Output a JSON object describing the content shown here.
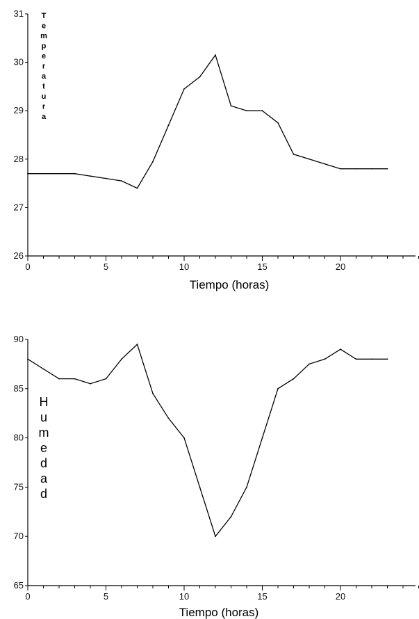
{
  "chart_data": [
    {
      "type": "line",
      "xlabel": "Tiempo (horas)",
      "ylabel": "Temperatura",
      "xlim": [
        0,
        25
      ],
      "ylim": [
        26,
        31
      ],
      "xticks": [
        0,
        5,
        10,
        15,
        20
      ],
      "xtick_labels": [
        "0",
        "5",
        "10",
        "15",
        "20"
      ],
      "yticks": [
        26,
        27,
        28,
        29,
        30,
        31
      ],
      "series": [
        {
          "x": [
            0,
            3,
            4,
            5,
            6,
            7,
            8,
            9,
            10,
            11,
            12,
            13,
            14,
            15,
            16,
            17,
            18,
            19,
            20,
            21,
            22,
            23
          ],
          "values": [
            27.7,
            27.7,
            27.65,
            27.6,
            27.55,
            27.4,
            27.95,
            28.7,
            29.45,
            29.7,
            30.15,
            29.1,
            29.0,
            29.0,
            28.75,
            28.1,
            28.0,
            27.9,
            27.8,
            27.8,
            27.8,
            27.8
          ]
        }
      ]
    },
    {
      "type": "line",
      "xlabel": "Tiempo (horas)",
      "ylabel": "Humedad",
      "xlim": [
        0,
        25
      ],
      "ylim": [
        65,
        90
      ],
      "xticks": [
        0,
        5,
        10,
        15,
        20
      ],
      "xtick_labels": [
        "0",
        "5",
        "10",
        "15",
        "20"
      ],
      "yticks": [
        65,
        70,
        75,
        80,
        85,
        90
      ],
      "series": [
        {
          "x": [
            0,
            1,
            2,
            3,
            4,
            5,
            6,
            7,
            8,
            9,
            10,
            11,
            12,
            13,
            14,
            15,
            16,
            17,
            18,
            19,
            20,
            21,
            22,
            23
          ],
          "values": [
            88,
            87,
            86,
            86,
            85.5,
            86,
            88,
            89.5,
            84.5,
            82,
            80,
            75,
            70,
            72,
            75,
            80,
            85,
            86,
            87.5,
            88,
            89,
            88,
            88,
            88
          ]
        }
      ]
    }
  ]
}
